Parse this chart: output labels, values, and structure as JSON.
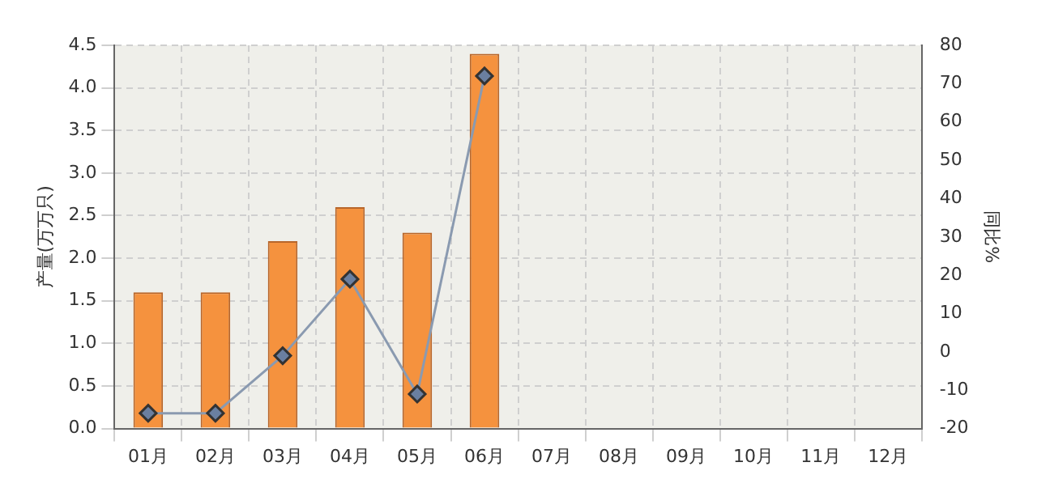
{
  "chart_data": {
    "type": "bar",
    "ylabel": "产量(万万只)",
    "y2label": "同比%",
    "categories": [
      "01月",
      "02月",
      "03月",
      "04月",
      "05月",
      "06月",
      "07月",
      "08月",
      "09月",
      "10月",
      "11月",
      "12月"
    ],
    "series": [
      {
        "color": "#f5923e",
        "values": [
          1.6,
          1.6,
          2.2,
          2.6,
          2.3,
          4.4,
          null,
          null,
          null,
          null,
          null,
          null
        ]
      },
      {
        "type": "line",
        "axis": "y2",
        "color": "#8a9ab0",
        "marker": "diamond",
        "values": [
          -16,
          -16,
          -1,
          19,
          -11,
          72,
          null,
          null,
          null,
          null,
          null,
          null
        ]
      }
    ],
    "ylim": [
      0,
      4.5
    ],
    "yticks": [
      {
        "value": 0,
        "label": "0.0"
      },
      0.5,
      {
        "value": 1,
        "label": "1.0"
      },
      1.5,
      {
        "value": 2,
        "label": "2.0"
      },
      2.5,
      {
        "value": 3,
        "label": "3.0"
      },
      3.5,
      {
        "value": 4,
        "label": "4.0"
      },
      4.5
    ],
    "y2lim": [
      -20,
      80
    ],
    "y2ticks": [
      -20,
      -10,
      0,
      10,
      20,
      30,
      40,
      50,
      60,
      70,
      80
    ],
    "grid": true,
    "legend": false
  }
}
